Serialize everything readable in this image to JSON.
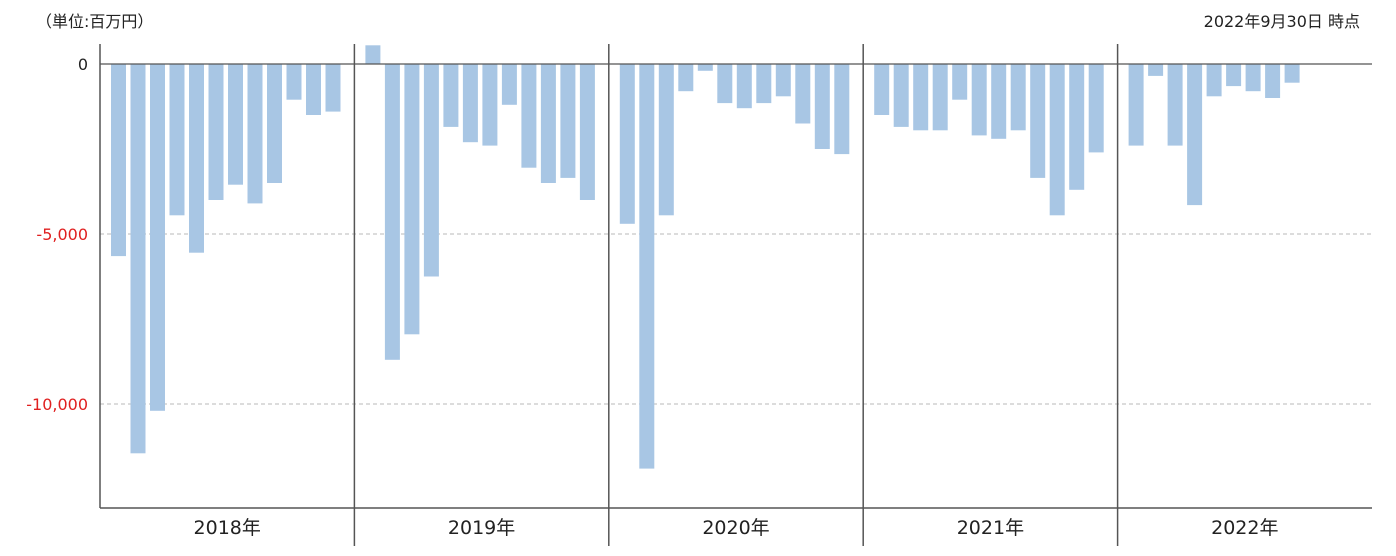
{
  "header": {
    "unit": "（単位:百万円）",
    "as_of": "2022年9月30日 時点"
  },
  "colors": {
    "bar": "#a8c6e4",
    "negative_tick": "#e02020",
    "zero_tick": "#222222",
    "axis": "#555555",
    "grid": "#c8c8c8"
  },
  "chart_data": {
    "type": "bar",
    "ylim": [
      -13100,
      550
    ],
    "yticks": [
      {
        "value": 0,
        "label": "0"
      },
      {
        "value": -5000,
        "label": "-5,000"
      },
      {
        "value": -10000,
        "label": "-10,000"
      }
    ],
    "grid": "dashed at -5,000 and -10,000",
    "groups": [
      {
        "label": "2018年",
        "values": [
          -5650,
          -11450,
          -10200,
          -4450,
          -5550,
          -4000,
          -3550,
          -4100,
          -3500,
          -1050,
          -1500,
          -1400
        ]
      },
      {
        "label": "2019年",
        "values": [
          550,
          -8700,
          -7950,
          -6250,
          -1850,
          -2300,
          -2400,
          -1200,
          -3050,
          -3500,
          -3350,
          -4000
        ]
      },
      {
        "label": "2020年",
        "values": [
          -4700,
          -11900,
          -4450,
          -800,
          -200,
          -1150,
          -1300,
          -1150,
          -950,
          -1750,
          -2500,
          -2650
        ]
      },
      {
        "label": "2021年",
        "values": [
          -1500,
          -1850,
          -1950,
          -1950,
          -1050,
          -2100,
          -2200,
          -1950,
          -3350,
          -4450,
          -3700,
          -2600
        ]
      },
      {
        "label": "2022年",
        "values": [
          -2400,
          -350,
          -2400,
          -4150,
          -950,
          -650,
          -800,
          -1000,
          -550
        ]
      }
    ]
  }
}
